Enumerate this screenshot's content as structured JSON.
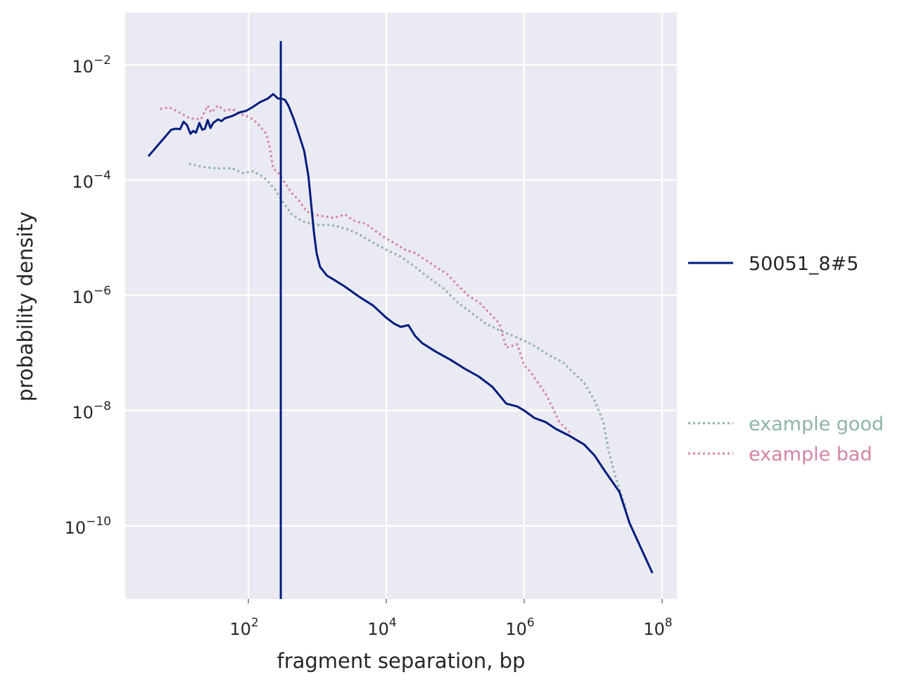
{
  "chart_data": {
    "type": "line",
    "xscale": "log",
    "yscale": "log",
    "xlabel": "fragment separation, bp",
    "ylabel": "probability density",
    "xlim_log10": [
      0.214,
      8.214
    ],
    "ylim_log10": [
      -11.27,
      -1.098
    ],
    "grid": true,
    "background": "#eaeaf2",
    "x_ticks": [
      {
        "base": "10",
        "exp": "2",
        "log10": 2
      },
      {
        "base": "10",
        "exp": "4",
        "log10": 4
      },
      {
        "base": "10",
        "exp": "6",
        "log10": 6
      },
      {
        "base": "10",
        "exp": "8",
        "log10": 8
      }
    ],
    "y_ticks": [
      {
        "base": "10",
        "exp": "−2",
        "log10": -2
      },
      {
        "base": "10",
        "exp": "−4",
        "log10": -4
      },
      {
        "base": "10",
        "exp": "−6",
        "log10": -6
      },
      {
        "base": "10",
        "exp": "−8",
        "log10": -8
      },
      {
        "base": "10",
        "exp": "−10",
        "log10": -10
      }
    ],
    "legend_placement": "right-outside",
    "series": [
      {
        "name": "50051_8#5",
        "color": "#001c7f",
        "style": "solid",
        "points_log10": [
          [
            0.55,
            -3.59
          ],
          [
            0.88,
            -3.13
          ],
          [
            0.95,
            -3.11
          ],
          [
            1.01,
            -3.12
          ],
          [
            1.06,
            -2.99
          ],
          [
            1.11,
            -3.05
          ],
          [
            1.16,
            -3.2
          ],
          [
            1.2,
            -3.15
          ],
          [
            1.24,
            -3.18
          ],
          [
            1.29,
            -3.01
          ],
          [
            1.33,
            -3.13
          ],
          [
            1.37,
            -3.11
          ],
          [
            1.41,
            -2.96
          ],
          [
            1.45,
            -3.1
          ],
          [
            1.49,
            -3.01
          ],
          [
            1.56,
            -2.95
          ],
          [
            1.61,
            -2.98
          ],
          [
            1.66,
            -2.93
          ],
          [
            1.77,
            -2.89
          ],
          [
            1.87,
            -2.83
          ],
          [
            1.97,
            -2.8
          ],
          [
            2.07,
            -2.73
          ],
          [
            2.17,
            -2.65
          ],
          [
            2.28,
            -2.59
          ],
          [
            2.36,
            -2.51
          ],
          [
            2.43,
            -2.59
          ],
          [
            2.48,
            -2.59
          ],
          [
            2.53,
            -2.61
          ],
          [
            2.58,
            -2.71
          ],
          [
            2.66,
            -2.95
          ],
          [
            2.73,
            -3.2
          ],
          [
            2.81,
            -3.5
          ],
          [
            2.87,
            -3.93
          ],
          [
            2.91,
            -4.41
          ],
          [
            2.95,
            -4.9
          ],
          [
            2.99,
            -5.27
          ],
          [
            3.04,
            -5.51
          ],
          [
            3.14,
            -5.66
          ],
          [
            3.24,
            -5.73
          ],
          [
            3.4,
            -5.85
          ],
          [
            3.6,
            -6.02
          ],
          [
            3.81,
            -6.18
          ],
          [
            4.0,
            -6.39
          ],
          [
            4.11,
            -6.49
          ],
          [
            4.21,
            -6.55
          ],
          [
            4.32,
            -6.52
          ],
          [
            4.42,
            -6.71
          ],
          [
            4.52,
            -6.83
          ],
          [
            4.72,
            -6.98
          ],
          [
            4.93,
            -7.12
          ],
          [
            5.13,
            -7.27
          ],
          [
            5.34,
            -7.41
          ],
          [
            5.54,
            -7.59
          ],
          [
            5.74,
            -7.88
          ],
          [
            5.9,
            -7.93
          ],
          [
            6.0,
            -8.0
          ],
          [
            6.15,
            -8.13
          ],
          [
            6.31,
            -8.2
          ],
          [
            6.46,
            -8.32
          ],
          [
            6.66,
            -8.44
          ],
          [
            6.87,
            -8.59
          ],
          [
            7.02,
            -8.78
          ],
          [
            7.17,
            -9.05
          ],
          [
            7.38,
            -9.41
          ],
          [
            7.53,
            -9.96
          ],
          [
            7.86,
            -10.82
          ]
        ],
        "spike_log10": {
          "x": 2.47,
          "y_top": -1.59
        }
      },
      {
        "name": "example good",
        "color": "#8db3aa",
        "style": "dotted",
        "points_log10": [
          [
            1.14,
            -3.72
          ],
          [
            1.36,
            -3.78
          ],
          [
            1.56,
            -3.8
          ],
          [
            1.77,
            -3.8
          ],
          [
            1.92,
            -3.88
          ],
          [
            2.07,
            -3.85
          ],
          [
            2.22,
            -3.95
          ],
          [
            2.38,
            -4.15
          ],
          [
            2.48,
            -4.35
          ],
          [
            2.63,
            -4.6
          ],
          [
            2.79,
            -4.72
          ],
          [
            2.99,
            -4.78
          ],
          [
            3.19,
            -4.78
          ],
          [
            3.4,
            -4.84
          ],
          [
            3.6,
            -4.94
          ],
          [
            3.81,
            -5.09
          ],
          [
            4.0,
            -5.21
          ],
          [
            4.21,
            -5.33
          ],
          [
            4.42,
            -5.51
          ],
          [
            4.62,
            -5.7
          ],
          [
            4.83,
            -5.88
          ],
          [
            5.03,
            -6.12
          ],
          [
            5.23,
            -6.3
          ],
          [
            5.44,
            -6.49
          ],
          [
            5.64,
            -6.61
          ],
          [
            5.85,
            -6.71
          ],
          [
            6.0,
            -6.79
          ],
          [
            6.15,
            -6.88
          ],
          [
            6.36,
            -7.04
          ],
          [
            6.56,
            -7.16
          ],
          [
            6.71,
            -7.34
          ],
          [
            6.87,
            -7.52
          ],
          [
            7.02,
            -7.83
          ],
          [
            7.15,
            -8.2
          ],
          [
            7.22,
            -8.68
          ],
          [
            7.33,
            -9.17
          ],
          [
            7.48,
            -9.72
          ]
        ]
      },
      {
        "name": "example bad",
        "color": "#d484a4",
        "style": "dotted",
        "points_log10": [
          [
            0.72,
            -2.77
          ],
          [
            0.85,
            -2.74
          ],
          [
            1.0,
            -2.83
          ],
          [
            1.15,
            -2.93
          ],
          [
            1.31,
            -2.95
          ],
          [
            1.41,
            -2.71
          ],
          [
            1.46,
            -2.83
          ],
          [
            1.56,
            -2.71
          ],
          [
            1.66,
            -2.8
          ],
          [
            1.77,
            -2.77
          ],
          [
            1.87,
            -2.85
          ],
          [
            1.97,
            -2.89
          ],
          [
            2.07,
            -2.95
          ],
          [
            2.17,
            -3.07
          ],
          [
            2.26,
            -3.2
          ],
          [
            2.31,
            -3.44
          ],
          [
            2.36,
            -3.8
          ],
          [
            2.43,
            -3.87
          ],
          [
            2.53,
            -4.05
          ],
          [
            2.63,
            -4.23
          ],
          [
            2.73,
            -4.35
          ],
          [
            2.84,
            -4.54
          ],
          [
            2.94,
            -4.6
          ],
          [
            3.09,
            -4.63
          ],
          [
            3.24,
            -4.66
          ],
          [
            3.4,
            -4.6
          ],
          [
            3.55,
            -4.72
          ],
          [
            3.7,
            -4.76
          ],
          [
            3.86,
            -4.9
          ],
          [
            4.0,
            -5.02
          ],
          [
            4.11,
            -5.09
          ],
          [
            4.27,
            -5.21
          ],
          [
            4.42,
            -5.27
          ],
          [
            4.57,
            -5.39
          ],
          [
            4.72,
            -5.51
          ],
          [
            4.88,
            -5.63
          ],
          [
            5.03,
            -5.82
          ],
          [
            5.18,
            -6.0
          ],
          [
            5.34,
            -6.12
          ],
          [
            5.49,
            -6.3
          ],
          [
            5.64,
            -6.49
          ],
          [
            5.74,
            -6.91
          ],
          [
            5.9,
            -6.85
          ],
          [
            6.0,
            -7.22
          ],
          [
            6.1,
            -7.34
          ],
          [
            6.2,
            -7.52
          ],
          [
            6.31,
            -7.71
          ],
          [
            6.41,
            -7.95
          ],
          [
            6.51,
            -8.2
          ],
          [
            6.66,
            -8.38
          ]
        ]
      }
    ]
  }
}
